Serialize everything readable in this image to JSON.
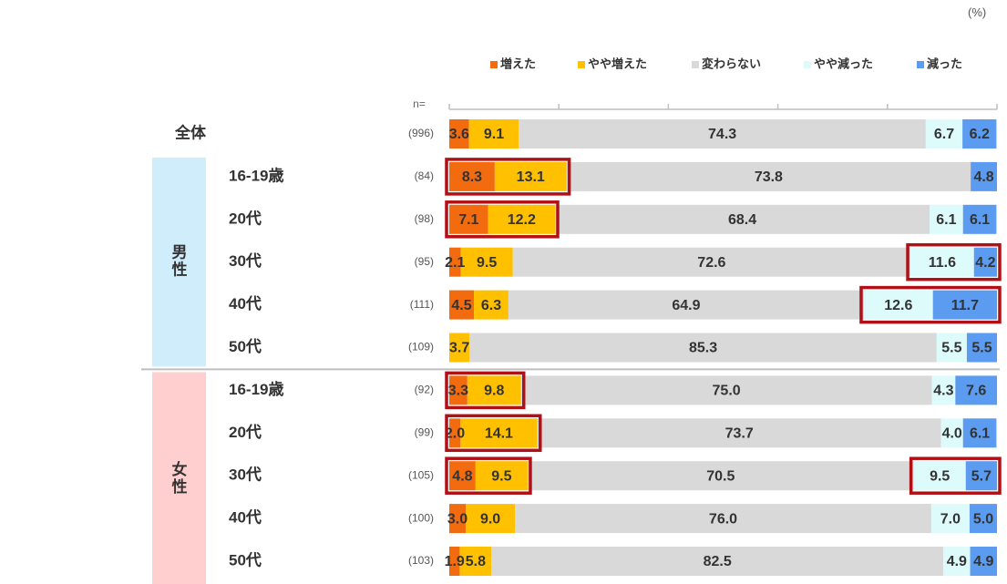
{
  "chart_data": {
    "type": "bar",
    "stacked": true,
    "orientation": "horizontal",
    "unit_label": "(%)",
    "n_label": "n=",
    "xlim": [
      0,
      100
    ],
    "legend": {
      "placement": "top",
      "items": [
        {
          "name": "増えた",
          "color": "#F26B0F"
        },
        {
          "name": "やや増えた",
          "color": "#FFC000"
        },
        {
          "name": "変わらない",
          "color": "#D9D9D9"
        },
        {
          "name": "やや減った",
          "color": "#DDFBFB"
        },
        {
          "name": "減った",
          "color": "#5B9BF0"
        }
      ]
    },
    "groups": [
      {
        "label": "男性",
        "color": "#D0EDFC"
      },
      {
        "label": "女性",
        "color": "#FFCFCF"
      }
    ],
    "highlight_color": "#B01116",
    "rows": [
      {
        "label": "全体",
        "n": "(996)",
        "values": [
          3.6,
          9.1,
          74.3,
          6.7,
          6.2
        ],
        "labels": [
          "3.6",
          "9.1",
          "74.3",
          "6.7",
          "6.2"
        ],
        "highlight": []
      },
      {
        "label": "16-19歳",
        "n": "(84)",
        "values": [
          8.3,
          13.1,
          73.8,
          0,
          4.8
        ],
        "labels": [
          "8.3",
          "13.1",
          "73.8",
          "",
          "4.8"
        ],
        "highlight": [
          "inc"
        ]
      },
      {
        "label": "20代",
        "n": "(98)",
        "values": [
          7.1,
          12.2,
          68.4,
          6.1,
          6.1
        ],
        "labels": [
          "7.1",
          "12.2",
          "68.4",
          "6.1",
          "6.1"
        ],
        "highlight": [
          "inc"
        ]
      },
      {
        "label": "30代",
        "n": "(95)",
        "values": [
          2.1,
          9.5,
          72.6,
          11.6,
          4.2
        ],
        "labels": [
          "2.1",
          "9.5",
          "72.6",
          "11.6",
          "4.2"
        ],
        "highlight": [
          "dec"
        ]
      },
      {
        "label": "40代",
        "n": "(111)",
        "values": [
          4.5,
          6.3,
          64.9,
          12.6,
          11.7
        ],
        "labels": [
          "4.5",
          "6.3",
          "64.9",
          "12.6",
          "11.7"
        ],
        "highlight": [
          "dec"
        ]
      },
      {
        "label": "50代",
        "n": "(109)",
        "values": [
          0,
          3.7,
          85.3,
          5.5,
          5.5
        ],
        "labels": [
          "",
          "3.7",
          "85.3",
          "5.5",
          "5.5"
        ],
        "highlight": []
      },
      {
        "label": "16-19歳",
        "n": "(92)",
        "values": [
          3.3,
          9.8,
          75.0,
          4.3,
          7.6
        ],
        "labels": [
          "3.3",
          "9.8",
          "75.0",
          "4.3",
          "7.6"
        ],
        "highlight": [
          "inc"
        ]
      },
      {
        "label": "20代",
        "n": "(99)",
        "values": [
          2.0,
          14.1,
          73.7,
          4.0,
          6.1
        ],
        "labels": [
          "2.0",
          "14.1",
          "73.7",
          "4.0",
          "6.1"
        ],
        "highlight": [
          "inc"
        ]
      },
      {
        "label": "30代",
        "n": "(105)",
        "values": [
          4.8,
          9.5,
          70.5,
          9.5,
          5.7
        ],
        "labels": [
          "4.8",
          "9.5",
          "70.5",
          "9.5",
          "5.7"
        ],
        "highlight": [
          "inc",
          "dec"
        ]
      },
      {
        "label": "40代",
        "n": "(100)",
        "values": [
          3.0,
          9.0,
          76.0,
          7.0,
          5.0
        ],
        "labels": [
          "3.0",
          "9.0",
          "76.0",
          "7.0",
          "5.0"
        ],
        "highlight": []
      },
      {
        "label": "50代",
        "n": "(103)",
        "values": [
          1.9,
          5.8,
          82.5,
          4.9,
          4.9
        ],
        "labels": [
          "1.9",
          "5.8",
          "82.5",
          "4.9",
          "4.9"
        ],
        "highlight": []
      }
    ]
  }
}
